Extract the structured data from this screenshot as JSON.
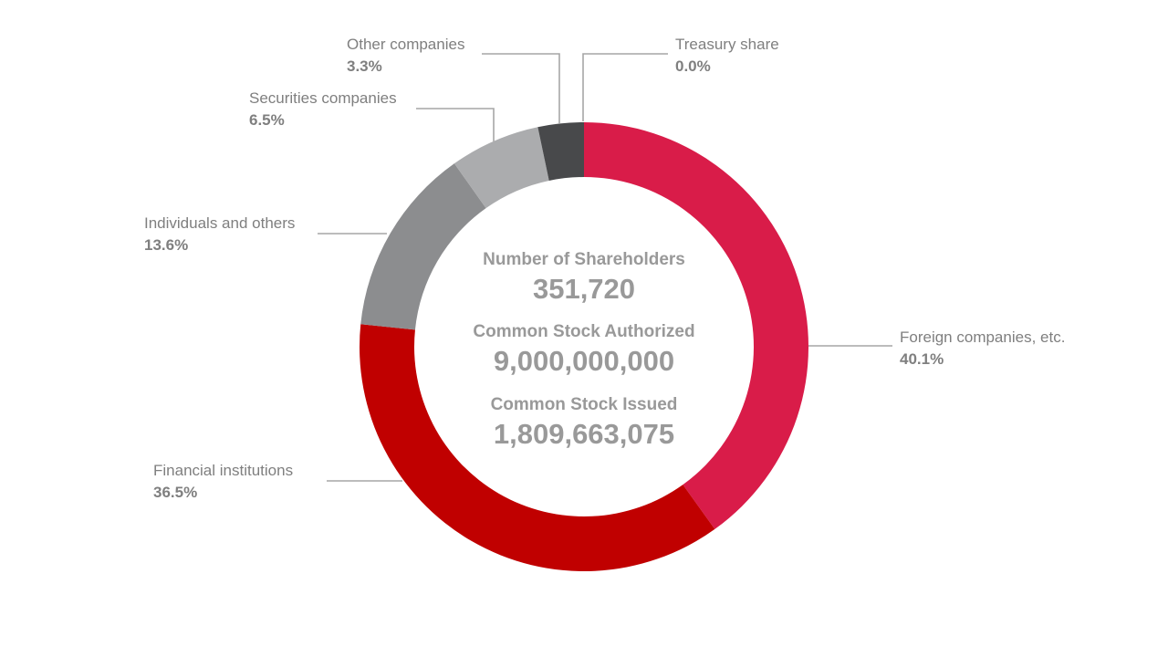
{
  "chart_data": {
    "type": "donut",
    "title": "",
    "slices": [
      {
        "label": "Foreign companies, etc.",
        "value": 40.1,
        "display": "40.1%",
        "color": "#d91c49"
      },
      {
        "label": "Financial institutions",
        "value": 36.5,
        "display": "36.5%",
        "color": "#c00000"
      },
      {
        "label": "Individuals and others",
        "value": 13.6,
        "display": "13.6%",
        "color": "#8c8d8f"
      },
      {
        "label": "Securities companies",
        "value": 6.5,
        "display": "6.5%",
        "color": "#abacae"
      },
      {
        "label": "Other companies",
        "value": 3.3,
        "display": "3.3%",
        "color": "#48494b"
      },
      {
        "label": "Treasury share",
        "value": 0.0,
        "display": "0.0%",
        "color": "#222222"
      }
    ],
    "center": [
      {
        "heading": "Number of Shareholders",
        "value": "351,720"
      },
      {
        "heading": "Common Stock Authorized",
        "value": "9,000,000,000"
      },
      {
        "heading": "Common Stock Issued",
        "value": "1,809,663,075"
      }
    ]
  }
}
